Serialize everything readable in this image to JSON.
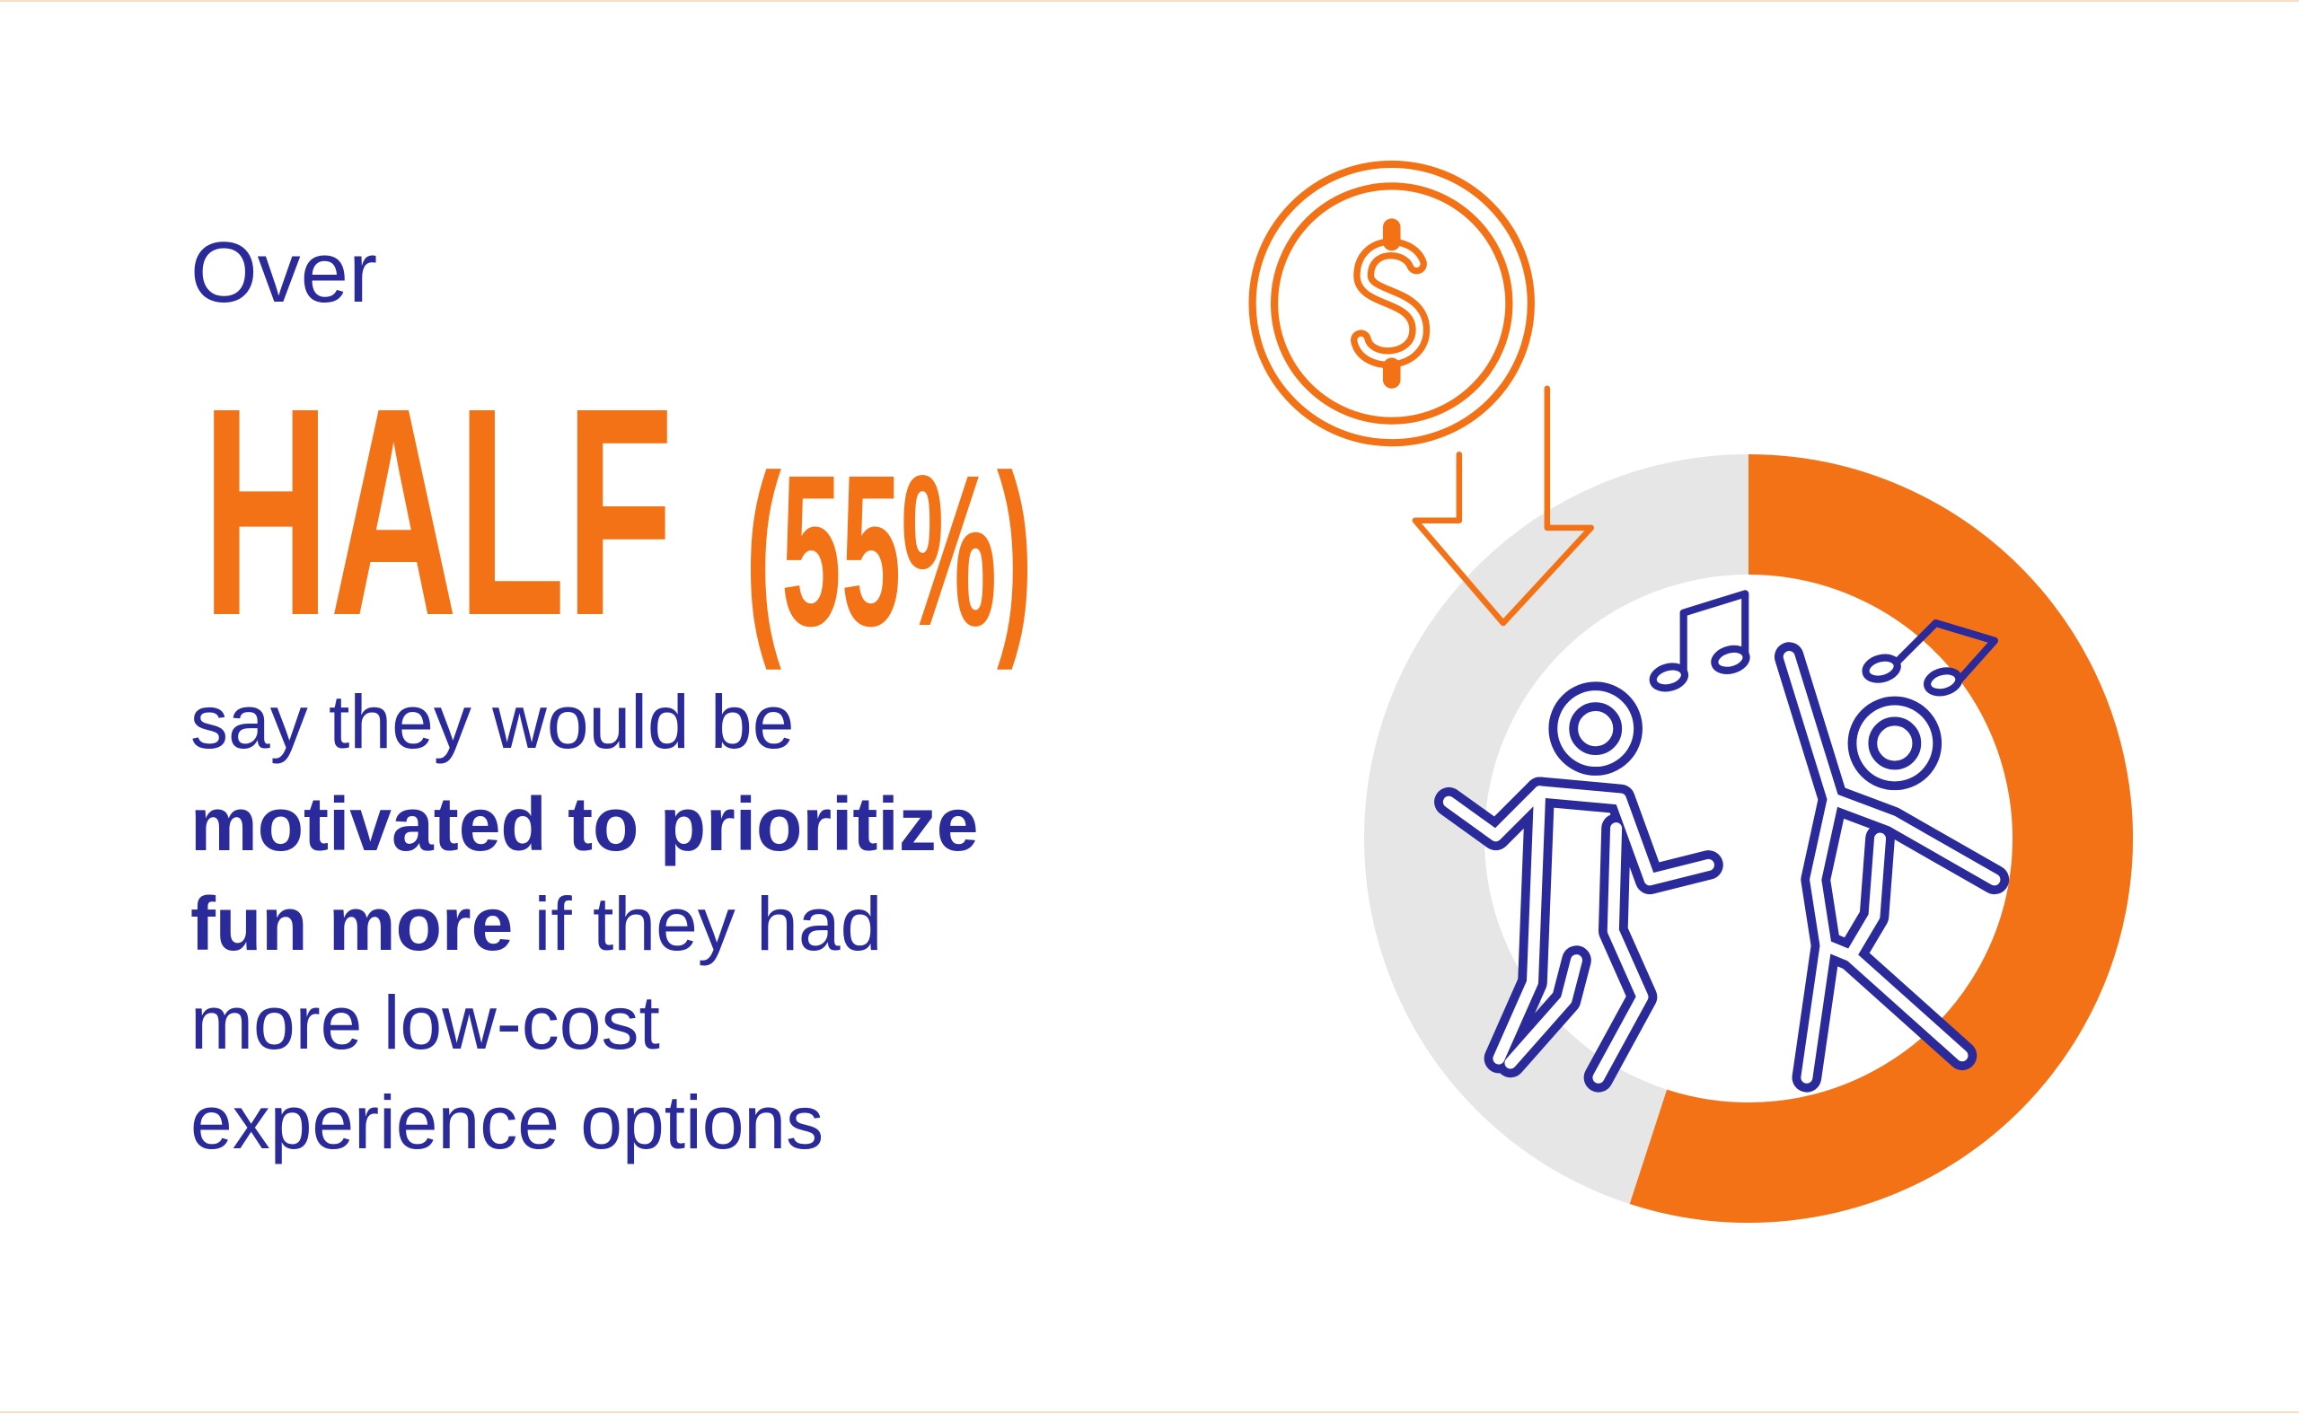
{
  "chart_data": {
    "type": "donut",
    "intro": "Over",
    "headline": "HALF",
    "values": [
      55
    ],
    "value_labels": [
      "(55%)"
    ],
    "lim": [
      0,
      100
    ],
    "color": "#f47216",
    "track_color": "#e6e6e6",
    "text_color": "#2b2a9b",
    "body": [
      [
        {
          "text": "say they would be",
          "bold": false
        }
      ],
      [
        {
          "text": "motivated to prioritize",
          "bold": true
        }
      ],
      [
        {
          "text": "fun more",
          "bold": true
        },
        {
          "text": " if they had",
          "bold": false
        }
      ],
      [
        {
          "text": "more low-cost",
          "bold": false
        }
      ],
      [
        {
          "text": "experience options",
          "bold": false
        }
      ]
    ]
  }
}
